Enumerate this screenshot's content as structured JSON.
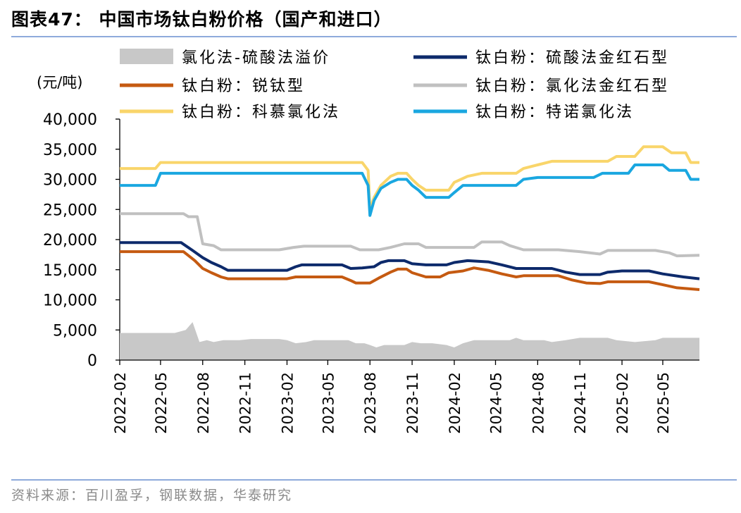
{
  "figure_title": "图表47：  中国市场钛白粉价格（国产和进口）",
  "source": "资料来源：百川盈孚，钢联数据，华泰研究",
  "chart_data": {
    "type": "line",
    "ylabel": "(元/吨)",
    "ylim": [
      0,
      40000
    ],
    "yticks": [
      0,
      5000,
      10000,
      15000,
      20000,
      25000,
      30000,
      35000,
      40000
    ],
    "ytick_labels": [
      "0",
      "5,000",
      "10,000",
      "15,000",
      "20,000",
      "25,000",
      "30,000",
      "35,000",
      "40,000"
    ],
    "x_tick_labels": [
      "2022-02",
      "2022-05",
      "2022-08",
      "2022-11",
      "2023-02",
      "2023-05",
      "2023-08",
      "2023-11",
      "2024-02",
      "2024-05",
      "2024-08",
      "2024-11",
      "2025-02",
      "2025-05"
    ],
    "x_range": [
      "2022-02-01",
      "2025-07-20"
    ],
    "legend_placement": "top",
    "series": [
      {
        "name": "氯化法-硫酸法溢价",
        "type": "area",
        "color": "#c8c8c8",
        "points": [
          [
            "2022-02-01",
            4500
          ],
          [
            "2022-06-01",
            4500
          ],
          [
            "2022-06-25",
            5000
          ],
          [
            "2022-07-10",
            6300
          ],
          [
            "2022-07-25",
            3000
          ],
          [
            "2022-08-10",
            3300
          ],
          [
            "2022-08-25",
            3000
          ],
          [
            "2022-09-15",
            3300
          ],
          [
            "2022-10-20",
            3300
          ],
          [
            "2022-11-15",
            3500
          ],
          [
            "2023-01-15",
            3500
          ],
          [
            "2023-02-01",
            3300
          ],
          [
            "2023-02-20",
            2800
          ],
          [
            "2023-03-15",
            3000
          ],
          [
            "2023-04-01",
            3300
          ],
          [
            "2023-06-15",
            3300
          ],
          [
            "2023-07-01",
            2800
          ],
          [
            "2023-07-20",
            2800
          ],
          [
            "2023-08-01",
            2500
          ],
          [
            "2023-08-15",
            2100
          ],
          [
            "2023-09-01",
            2500
          ],
          [
            "2023-10-15",
            2500
          ],
          [
            "2023-11-01",
            3000
          ],
          [
            "2023-11-20",
            2800
          ],
          [
            "2023-12-15",
            2800
          ],
          [
            "2024-01-15",
            2500
          ],
          [
            "2024-02-01",
            2100
          ],
          [
            "2024-02-20",
            2800
          ],
          [
            "2024-03-15",
            3300
          ],
          [
            "2024-06-01",
            3300
          ],
          [
            "2024-06-15",
            3700
          ],
          [
            "2024-07-01",
            3300
          ],
          [
            "2024-08-15",
            3300
          ],
          [
            "2024-09-01",
            3000
          ],
          [
            "2024-10-01",
            3300
          ],
          [
            "2024-11-01",
            3700
          ],
          [
            "2025-01-01",
            3700
          ],
          [
            "2025-01-20",
            3300
          ],
          [
            "2025-03-01",
            3000
          ],
          [
            "2025-04-15",
            3300
          ],
          [
            "2025-05-01",
            3700
          ],
          [
            "2025-07-01",
            3700
          ],
          [
            "2025-07-20",
            3700
          ]
        ]
      },
      {
        "name": "钛白粉：硫酸法金红石型",
        "type": "line",
        "color": "#0d2a6b",
        "points": [
          [
            "2022-02-01",
            19500
          ],
          [
            "2022-06-15",
            19500
          ],
          [
            "2022-07-10",
            18200
          ],
          [
            "2022-08-01",
            17000
          ],
          [
            "2022-08-20",
            16200
          ],
          [
            "2022-09-10",
            15500
          ],
          [
            "2022-09-25",
            14900
          ],
          [
            "2023-02-01",
            14900
          ],
          [
            "2023-02-20",
            15500
          ],
          [
            "2023-03-05",
            15800
          ],
          [
            "2023-06-01",
            15800
          ],
          [
            "2023-06-20",
            15200
          ],
          [
            "2023-07-15",
            15300
          ],
          [
            "2023-08-10",
            15500
          ],
          [
            "2023-08-25",
            16200
          ],
          [
            "2023-09-10",
            16500
          ],
          [
            "2023-10-15",
            16500
          ],
          [
            "2023-11-01",
            16000
          ],
          [
            "2023-12-01",
            15800
          ],
          [
            "2024-01-15",
            15800
          ],
          [
            "2024-02-01",
            16200
          ],
          [
            "2024-03-01",
            16500
          ],
          [
            "2024-04-15",
            16300
          ],
          [
            "2024-05-15",
            15800
          ],
          [
            "2024-06-15",
            15200
          ],
          [
            "2024-09-01",
            15200
          ],
          [
            "2024-10-01",
            14600
          ],
          [
            "2024-11-01",
            14200
          ],
          [
            "2024-12-15",
            14200
          ],
          [
            "2025-01-01",
            14600
          ],
          [
            "2025-02-01",
            14800
          ],
          [
            "2025-04-01",
            14800
          ],
          [
            "2025-05-01",
            14300
          ],
          [
            "2025-06-15",
            13800
          ],
          [
            "2025-07-20",
            13500
          ]
        ]
      },
      {
        "name": "钛白粉：锐钛型",
        "type": "line",
        "color": "#c55a11",
        "points": [
          [
            "2022-02-01",
            18000
          ],
          [
            "2022-06-20",
            18000
          ],
          [
            "2022-07-15",
            16500
          ],
          [
            "2022-08-01",
            15200
          ],
          [
            "2022-08-20",
            14500
          ],
          [
            "2022-09-10",
            13800
          ],
          [
            "2022-09-25",
            13500
          ],
          [
            "2023-02-01",
            13500
          ],
          [
            "2023-02-20",
            13800
          ],
          [
            "2023-06-01",
            13800
          ],
          [
            "2023-06-20",
            13200
          ],
          [
            "2023-07-01",
            12800
          ],
          [
            "2023-08-01",
            12800
          ],
          [
            "2023-08-20",
            13600
          ],
          [
            "2023-09-15",
            14600
          ],
          [
            "2023-10-01",
            15100
          ],
          [
            "2023-10-20",
            15100
          ],
          [
            "2023-11-01",
            14500
          ],
          [
            "2023-12-01",
            13800
          ],
          [
            "2024-01-01",
            13800
          ],
          [
            "2024-01-20",
            14500
          ],
          [
            "2024-02-20",
            14800
          ],
          [
            "2024-03-15",
            15300
          ],
          [
            "2024-04-15",
            14900
          ],
          [
            "2024-05-15",
            14300
          ],
          [
            "2024-06-15",
            13800
          ],
          [
            "2024-07-01",
            14000
          ],
          [
            "2024-09-15",
            14000
          ],
          [
            "2024-10-15",
            13300
          ],
          [
            "2024-11-15",
            12800
          ],
          [
            "2024-12-15",
            12700
          ],
          [
            "2025-01-01",
            13000
          ],
          [
            "2025-04-01",
            13000
          ],
          [
            "2025-05-01",
            12500
          ],
          [
            "2025-06-01",
            12000
          ],
          [
            "2025-07-20",
            11700
          ]
        ]
      },
      {
        "name": "钛白粉：氯化法金红石型",
        "type": "line",
        "color": "#c0c0c0",
        "points": [
          [
            "2022-02-01",
            24300
          ],
          [
            "2022-06-20",
            24300
          ],
          [
            "2022-07-01",
            23800
          ],
          [
            "2022-07-20",
            23800
          ],
          [
            "2022-08-01",
            19300
          ],
          [
            "2022-08-25",
            19000
          ],
          [
            "2022-09-10",
            18300
          ],
          [
            "2023-01-15",
            18300
          ],
          [
            "2023-02-15",
            18700
          ],
          [
            "2023-03-10",
            18900
          ],
          [
            "2023-06-20",
            18900
          ],
          [
            "2023-07-10",
            18300
          ],
          [
            "2023-08-20",
            18300
          ],
          [
            "2023-09-15",
            18700
          ],
          [
            "2023-10-15",
            19300
          ],
          [
            "2023-11-15",
            19300
          ],
          [
            "2023-12-01",
            18700
          ],
          [
            "2024-03-15",
            18700
          ],
          [
            "2024-04-01",
            19600
          ],
          [
            "2024-05-15",
            19600
          ],
          [
            "2024-06-01",
            19000
          ],
          [
            "2024-07-01",
            18300
          ],
          [
            "2024-09-15",
            18300
          ],
          [
            "2024-11-01",
            18000
          ],
          [
            "2024-12-15",
            17600
          ],
          [
            "2025-01-01",
            18200
          ],
          [
            "2025-04-15",
            18200
          ],
          [
            "2025-05-15",
            17800
          ],
          [
            "2025-06-01",
            17300
          ],
          [
            "2025-07-20",
            17400
          ]
        ]
      },
      {
        "name": "钛白粉：科慕氯化法",
        "type": "line",
        "color": "#f9d56a",
        "points": [
          [
            "2022-02-01",
            31800
          ],
          [
            "2022-04-20",
            31800
          ],
          [
            "2022-05-01",
            32800
          ],
          [
            "2023-07-15",
            32800
          ],
          [
            "2023-07-28",
            31500
          ],
          [
            "2023-08-01",
            25000
          ],
          [
            "2023-08-10",
            27000
          ],
          [
            "2023-08-25",
            29000
          ],
          [
            "2023-09-15",
            30500
          ],
          [
            "2023-10-01",
            31000
          ],
          [
            "2023-10-20",
            31000
          ],
          [
            "2023-11-01",
            30000
          ],
          [
            "2023-11-15",
            29000
          ],
          [
            "2023-12-01",
            28200
          ],
          [
            "2024-01-20",
            28200
          ],
          [
            "2024-02-01",
            29500
          ],
          [
            "2024-03-01",
            30500
          ],
          [
            "2024-04-01",
            31000
          ],
          [
            "2024-06-15",
            31000
          ],
          [
            "2024-07-01",
            31800
          ],
          [
            "2024-08-01",
            32400
          ],
          [
            "2024-09-01",
            33000
          ],
          [
            "2025-01-01",
            33000
          ],
          [
            "2025-01-20",
            33800
          ],
          [
            "2025-03-01",
            33800
          ],
          [
            "2025-03-20",
            35400
          ],
          [
            "2025-05-01",
            35400
          ],
          [
            "2025-05-20",
            34400
          ],
          [
            "2025-06-20",
            34400
          ],
          [
            "2025-07-01",
            32800
          ],
          [
            "2025-07-20",
            32800
          ]
        ]
      },
      {
        "name": "钛白粉：特诺氯化法",
        "type": "line",
        "color": "#1aa7e0",
        "points": [
          [
            "2022-02-01",
            29000
          ],
          [
            "2022-04-20",
            29000
          ],
          [
            "2022-05-01",
            31000
          ],
          [
            "2023-07-15",
            31000
          ],
          [
            "2023-07-28",
            29000
          ],
          [
            "2023-08-01",
            24000
          ],
          [
            "2023-08-10",
            26500
          ],
          [
            "2023-08-25",
            28500
          ],
          [
            "2023-09-15",
            29500
          ],
          [
            "2023-10-01",
            30000
          ],
          [
            "2023-10-20",
            30000
          ],
          [
            "2023-11-01",
            29000
          ],
          [
            "2023-11-15",
            28200
          ],
          [
            "2023-12-01",
            27000
          ],
          [
            "2024-01-20",
            27000
          ],
          [
            "2024-02-01",
            27800
          ],
          [
            "2024-02-20",
            29000
          ],
          [
            "2024-06-15",
            29000
          ],
          [
            "2024-07-01",
            30000
          ],
          [
            "2024-08-01",
            30300
          ],
          [
            "2024-12-01",
            30300
          ],
          [
            "2024-12-20",
            31000
          ],
          [
            "2025-02-15",
            31000
          ],
          [
            "2025-03-01",
            32400
          ],
          [
            "2025-05-01",
            32400
          ],
          [
            "2025-05-15",
            31500
          ],
          [
            "2025-06-20",
            31500
          ],
          [
            "2025-07-01",
            30000
          ],
          [
            "2025-07-20",
            30000
          ]
        ]
      }
    ]
  }
}
